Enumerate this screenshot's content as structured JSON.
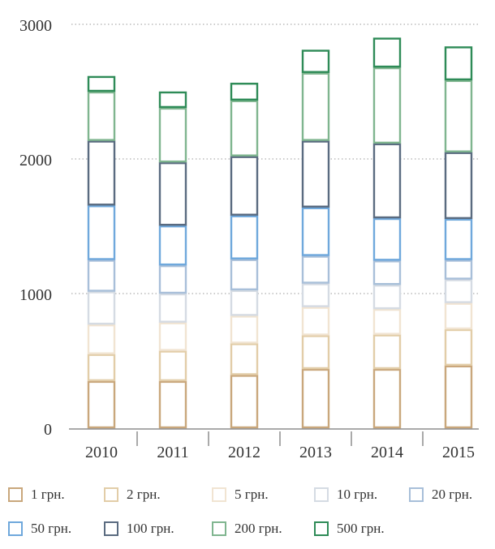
{
  "chart_data": {
    "type": "bar",
    "stacked": true,
    "categories": [
      "2010",
      "2011",
      "2012",
      "2013",
      "2014",
      "2015"
    ],
    "ylim": [
      0,
      3000
    ],
    "yticks": [
      0,
      1000,
      2000,
      3000
    ],
    "grid": "dotted-horizontal",
    "legend_position": "bottom",
    "series": [
      {
        "name": "1 грн.",
        "color": "#c9a77c",
        "values": [
          350,
          350,
          395,
          440,
          440,
          465
        ]
      },
      {
        "name": "2 грн.",
        "color": "#e2cda8",
        "values": [
          200,
          225,
          235,
          250,
          255,
          270
        ]
      },
      {
        "name": "5 грн.",
        "color": "#f1e4d2",
        "values": [
          220,
          210,
          205,
          210,
          190,
          195
        ]
      },
      {
        "name": "10 грн.",
        "color": "#d5dbe3",
        "values": [
          245,
          215,
          190,
          175,
          180,
          175
        ]
      },
      {
        "name": "20 грн.",
        "color": "#a8bfd9",
        "values": [
          235,
          210,
          230,
          205,
          180,
          145
        ]
      },
      {
        "name": "50 грн.",
        "color": "#6fa8dc",
        "values": [
          405,
          295,
          325,
          360,
          315,
          305
        ]
      },
      {
        "name": "100 грн.",
        "color": "#5a6b80",
        "values": [
          480,
          470,
          440,
          495,
          555,
          495
        ]
      },
      {
        "name": "200 грн.",
        "color": "#7fb58f",
        "values": [
          365,
          405,
          415,
          505,
          565,
          535
        ]
      },
      {
        "name": "500 грн.",
        "color": "#2e8b57",
        "values": [
          115,
          120,
          130,
          170,
          220,
          250
        ]
      }
    ]
  }
}
